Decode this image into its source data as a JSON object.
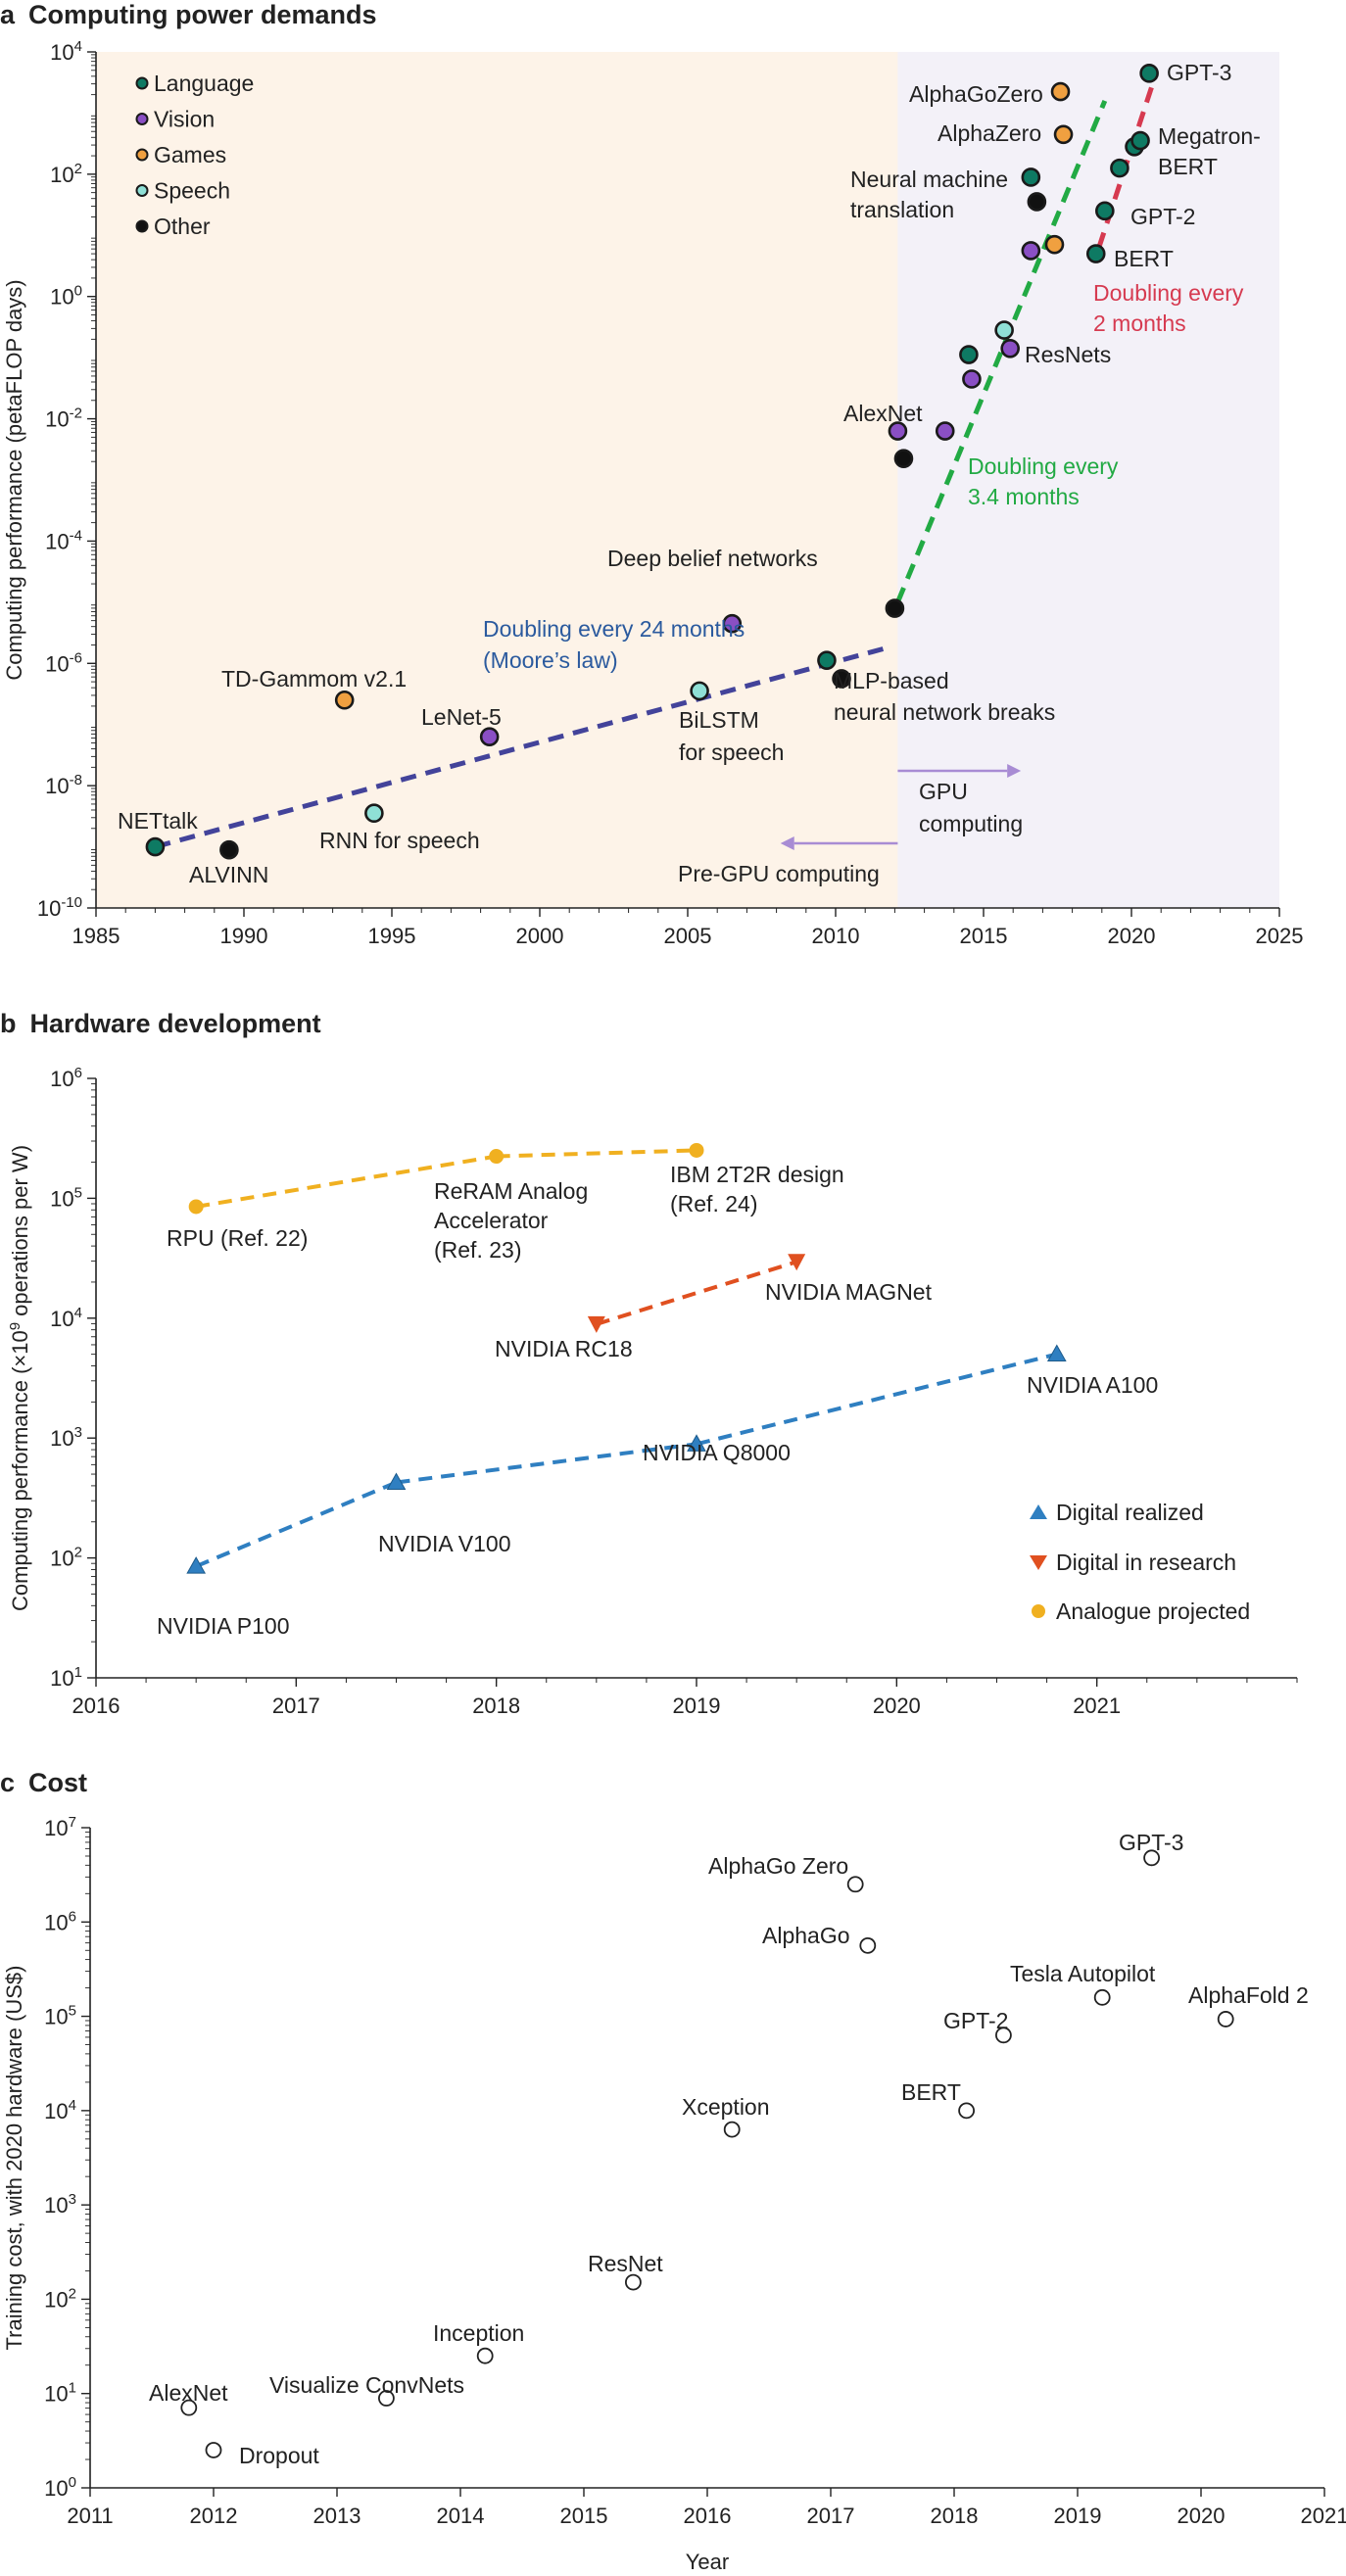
{
  "panels": {
    "a": {
      "letter": "a",
      "title": "Computing power demands"
    },
    "b": {
      "letter": "b",
      "title": "Hardware development"
    },
    "c": {
      "letter": "c",
      "title": "Cost"
    }
  },
  "colors": {
    "language": "#0e7a63",
    "vision": "#8a4fc4",
    "games": "#f0a040",
    "speech": "#8fe0d6",
    "other": "#111111",
    "moore_line": "#43439a",
    "gpu_green": "#22aa44",
    "red_line": "#d63a50",
    "bg_pregpu": "#fdf3e8",
    "bg_gpu": "#f3f1f8",
    "arrow": "#a88cd4",
    "digital_blue": "#2f7fc1",
    "research_red": "#e05020",
    "analogue_orange": "#f0b020",
    "moore_text": "#2b5a9e"
  },
  "chart_data": [
    {
      "type": "scatter",
      "panel": "a",
      "title": "Computing power demands",
      "xlabel": "",
      "ylabel": "Computing performance (petaFLOP days)",
      "xlim": [
        1985,
        2025
      ],
      "ylim_log10": [
        -10,
        4
      ],
      "x_ticks": [
        "1985",
        "1990",
        "1995",
        "2000",
        "2005",
        "2010",
        "2015",
        "2020",
        "2025"
      ],
      "y_tick_base": "10",
      "y_tick_exponents": [
        "-10",
        "-8",
        "-6",
        "-4",
        "-2",
        "0",
        "2",
        "4"
      ],
      "gpu_start_year": 2012.1,
      "legend": {
        "position": "top-left",
        "items": [
          {
            "key": "language",
            "label": "Language"
          },
          {
            "key": "vision",
            "label": "Vision"
          },
          {
            "key": "games",
            "label": "Games"
          },
          {
            "key": "speech",
            "label": "Speech"
          },
          {
            "key": "other",
            "label": "Other"
          }
        ]
      },
      "points": [
        {
          "x": 1987.0,
          "y": -9.0,
          "cat": "language"
        },
        {
          "x": 1989.5,
          "y": -9.05,
          "cat": "other"
        },
        {
          "x": 1993.4,
          "y": -6.6,
          "cat": "games"
        },
        {
          "x": 1994.4,
          "y": -8.45,
          "cat": "speech"
        },
        {
          "x": 1998.3,
          "y": -7.2,
          "cat": "vision"
        },
        {
          "x": 2005.4,
          "y": -6.45,
          "cat": "speech"
        },
        {
          "x": 2006.5,
          "y": -5.35,
          "cat": "vision"
        },
        {
          "x": 2009.7,
          "y": -5.95,
          "cat": "language"
        },
        {
          "x": 2010.2,
          "y": -6.25,
          "cat": "other"
        },
        {
          "x": 2012.0,
          "y": -5.1,
          "cat": "other"
        },
        {
          "x": 2012.1,
          "y": -2.2,
          "cat": "vision"
        },
        {
          "x": 2012.3,
          "y": -2.65,
          "cat": "other"
        },
        {
          "x": 2013.7,
          "y": -2.2,
          "cat": "vision"
        },
        {
          "x": 2014.6,
          "y": -1.35,
          "cat": "vision"
        },
        {
          "x": 2014.5,
          "y": -0.95,
          "cat": "language"
        },
        {
          "x": 2015.7,
          "y": -0.55,
          "cat": "speech"
        },
        {
          "x": 2015.9,
          "y": -0.85,
          "cat": "vision"
        },
        {
          "x": 2016.6,
          "y": 0.75,
          "cat": "vision"
        },
        {
          "x": 2016.6,
          "y": 1.95,
          "cat": "language"
        },
        {
          "x": 2016.8,
          "y": 1.55,
          "cat": "other"
        },
        {
          "x": 2017.4,
          "y": 0.85,
          "cat": "games"
        },
        {
          "x": 2017.6,
          "y": 3.35,
          "cat": "games"
        },
        {
          "x": 2017.7,
          "y": 2.65,
          "cat": "games"
        },
        {
          "x": 2018.8,
          "y": 0.7,
          "cat": "language"
        },
        {
          "x": 2019.1,
          "y": 1.4,
          "cat": "language"
        },
        {
          "x": 2019.6,
          "y": 2.1,
          "cat": "language"
        },
        {
          "x": 2020.1,
          "y": 2.45,
          "cat": "language"
        },
        {
          "x": 2020.3,
          "y": 2.55,
          "cat": "language"
        },
        {
          "x": 2020.6,
          "y": 3.65,
          "cat": "language"
        }
      ],
      "trend_lines": [
        {
          "label": "Doubling every 24 months (Moore’s law)",
          "color_key": "moore_line",
          "from": [
            1987.0,
            -9.0
          ],
          "to": [
            2011.7,
            -5.75
          ]
        },
        {
          "label": "Doubling every 3.4 months",
          "color_key": "gpu_green",
          "from": [
            2012.1,
            -5.0
          ],
          "to": [
            2019.1,
            3.2
          ]
        },
        {
          "label": "Doubling every 2 months",
          "color_key": "red_line",
          "from": [
            2018.9,
            0.8
          ],
          "to": [
            2020.8,
            3.6
          ]
        }
      ],
      "annotations": {
        "nettalk": "NETtalk",
        "alvinn": "ALVINN",
        "tdgammon": "TD-Gammom v2.1",
        "rnn": "RNN for speech",
        "lenet": "LeNet-5",
        "dbn": "Deep belief networks",
        "bilstm_1": "BiLSTM",
        "bilstm_2": "for speech",
        "mlp_1": "MLP-based",
        "mlp_2": "neural network breaks",
        "moore_1": "Doubling every 24 months",
        "moore_2": "(Moore’s law)",
        "alexnet": "AlexNet",
        "resnets": "ResNets",
        "nmt_1": "Neural machine",
        "nmt_2": "translation",
        "alphagozero": "AlphaGoZero",
        "alphazero": "AlphaZero",
        "gpt3": "GPT-3",
        "megatron_1": "Megatron-",
        "megatron_2": "BERT",
        "gpt2": "GPT-2",
        "bert": "BERT",
        "dbl2_1": "Doubling every",
        "dbl2_2": "2 months",
        "dbl34_1": "Doubling every",
        "dbl34_2": "3.4 months",
        "gpu_1": "GPU",
        "gpu_2": "computing",
        "pregpu": "Pre-GPU computing"
      }
    },
    {
      "type": "line",
      "panel": "b",
      "title": "Hardware development",
      "ylabel_main": "Computing performance (×10",
      "ylabel_sup": "9",
      "ylabel_tail": " operations per W)",
      "xlim": [
        2016,
        2022
      ],
      "ylim_log10": [
        1,
        6
      ],
      "x_ticks": [
        "2016",
        "2017",
        "2018",
        "2019",
        "2020",
        "2021"
      ],
      "y_tick_base": "10",
      "y_tick_exponents": [
        "1",
        "2",
        "3",
        "4",
        "5",
        "6"
      ],
      "legend": {
        "position": "bottom-right",
        "items": [
          {
            "key": "digital",
            "label": "Digital realized"
          },
          {
            "key": "research",
            "label": "Digital in research"
          },
          {
            "key": "analogue",
            "label": "Analogue projected"
          }
        ]
      },
      "series": [
        {
          "key": "digital",
          "points": [
            {
              "x": 2016.5,
              "y": 1.93,
              "label": "NVIDIA P100"
            },
            {
              "x": 2017.5,
              "y": 2.63,
              "label": "NVIDIA V100"
            },
            {
              "x": 2019.0,
              "y": 2.95,
              "label": "NVIDIA Q8000"
            },
            {
              "x": 2020.8,
              "y": 3.7,
              "label": "NVIDIA A100"
            }
          ]
        },
        {
          "key": "research",
          "points": [
            {
              "x": 2018.5,
              "y": 3.95,
              "label": "NVIDIA RC18"
            },
            {
              "x": 2019.5,
              "y": 4.47,
              "label": "NVIDIA MAGNet"
            }
          ]
        },
        {
          "key": "analogue",
          "points": [
            {
              "x": 2016.5,
              "y": 4.93,
              "label": "RPU (Ref. 22)"
            },
            {
              "x": 2018.0,
              "y": 5.35,
              "label_lines": [
                "ReRAM Analog",
                "Accelerator",
                "(Ref. 23)"
              ]
            },
            {
              "x": 2019.0,
              "y": 5.4,
              "label_lines": [
                "IBM 2T2R design",
                "(Ref. 24)"
              ]
            }
          ]
        }
      ]
    },
    {
      "type": "scatter",
      "panel": "c",
      "title": "Cost",
      "xlabel": "Year",
      "ylabel": "Training cost, with 2020 hardware (US$)",
      "xlim": [
        2011,
        2021
      ],
      "ylim_log10": [
        0,
        7
      ],
      "x_ticks": [
        "2011",
        "2012",
        "2013",
        "2014",
        "2015",
        "2016",
        "2017",
        "2018",
        "2019",
        "2020",
        "2021"
      ],
      "y_tick_base": "10",
      "y_tick_exponents": [
        "0",
        "1",
        "2",
        "3",
        "4",
        "5",
        "6",
        "7"
      ],
      "points": [
        {
          "x": 2011.8,
          "y": 0.85,
          "label": "AlexNet"
        },
        {
          "x": 2012.0,
          "y": 0.4,
          "label": "Dropout"
        },
        {
          "x": 2013.4,
          "y": 0.95,
          "label": "Visualize ConvNets"
        },
        {
          "x": 2014.2,
          "y": 1.4,
          "label": "Inception"
        },
        {
          "x": 2015.4,
          "y": 2.18,
          "label": "ResNet"
        },
        {
          "x": 2016.2,
          "y": 3.8,
          "label": "Xception"
        },
        {
          "x": 2017.2,
          "y": 6.4,
          "label": "AlphaGo Zero"
        },
        {
          "x": 2017.3,
          "y": 5.75,
          "label": "AlphaGo"
        },
        {
          "x": 2018.1,
          "y": 4.0,
          "label": "BERT"
        },
        {
          "x": 2018.4,
          "y": 4.8,
          "label": "GPT-2"
        },
        {
          "x": 2019.2,
          "y": 5.2,
          "label": "Tesla Autopilot"
        },
        {
          "x": 2019.6,
          "y": 6.68,
          "label": "GPT-3"
        },
        {
          "x": 2020.2,
          "y": 4.97,
          "label": "AlphaFold 2"
        }
      ]
    }
  ]
}
